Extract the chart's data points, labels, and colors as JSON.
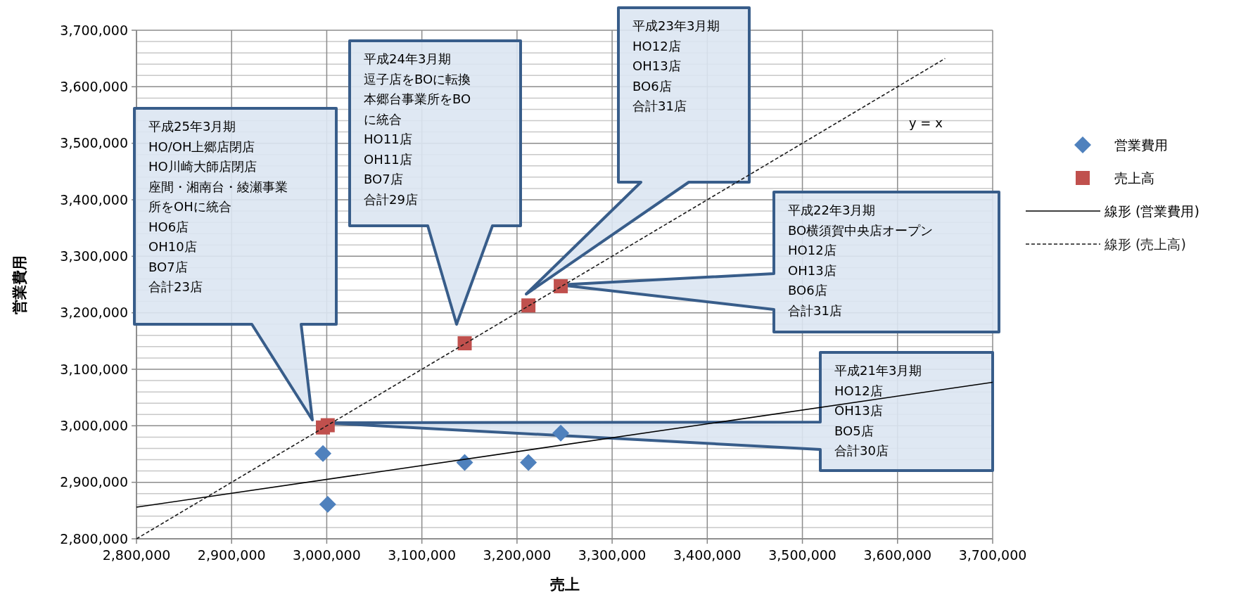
{
  "chart_data": {
    "type": "scatter",
    "xlabel": "売上",
    "ylabel": "営業費用",
    "xlim": [
      2800000,
      3700000
    ],
    "ylim": [
      2800000,
      3700000
    ],
    "xticks": [
      {
        "value": 2800000,
        "label": "2,800,000"
      },
      {
        "value": 2900000,
        "label": "2,900,000"
      },
      {
        "value": 3000000,
        "label": "3,000,000"
      },
      {
        "value": 3100000,
        "label": "3,100,000"
      },
      {
        "value": 3200000,
        "label": "3,200,000"
      },
      {
        "value": 3300000,
        "label": "3,300,000"
      },
      {
        "value": 3400000,
        "label": "3,400,000"
      },
      {
        "value": 3500000,
        "label": "3,500,000"
      },
      {
        "value": 3600000,
        "label": "3,600,000"
      },
      {
        "value": 3700000,
        "label": "3,700,000"
      }
    ],
    "yticks": [
      {
        "value": 2800000,
        "label": "2,800,000"
      },
      {
        "value": 2900000,
        "label": "2,900,000"
      },
      {
        "value": 3000000,
        "label": "3,000,000"
      },
      {
        "value": 3100000,
        "label": "3,100,000"
      },
      {
        "value": 3200000,
        "label": "3,200,000"
      },
      {
        "value": 3300000,
        "label": "3,300,000"
      },
      {
        "value": 3400000,
        "label": "3,400,000"
      },
      {
        "value": 3500000,
        "label": "3,500,000"
      },
      {
        "value": 3600000,
        "label": "3,600,000"
      },
      {
        "value": 3700000,
        "label": "3,700,000"
      }
    ],
    "grid": true,
    "legend": "right",
    "series": [
      {
        "name": "営業費用",
        "marker": "diamond",
        "color": "#4f81bd",
        "x": [
          2996000,
          3001000,
          3145000,
          3212000,
          3246000
        ],
        "values": [
          2951000,
          2861000,
          2935000,
          2935000,
          2987000
        ]
      },
      {
        "name": "売上高",
        "marker": "square",
        "color": "#c0504d",
        "x": [
          2996000,
          3001000,
          3145000,
          3212000,
          3246000
        ],
        "values": [
          2997000,
          3001000,
          3146000,
          3213000,
          3247000
        ]
      },
      {
        "name": "線形 (営業費用)",
        "type": "line",
        "line_style": "solid",
        "marker": "none",
        "color": "#000000",
        "x": [
          2800000,
          3700000
        ],
        "values": [
          2856000,
          3077000
        ]
      },
      {
        "name": "線形 (売上高)",
        "type": "line",
        "line_style": "dashed",
        "marker": "none",
        "color": "#1a1a1a",
        "x": [
          2800000,
          3650000
        ],
        "values": [
          2800000,
          3650000
        ]
      }
    ],
    "annotations": [
      "平成25年3月期",
      "HO/OH上郷店閉店",
      "HO川崎大師店閉店",
      "座間・湘南台・綾瀬事業",
      "所をOHに統合",
      "HO6店",
      "OH10店",
      "BO7店",
      "合計23店",
      "平成24年3月期",
      "逗子店をBOに転換",
      "本郷台事業所をBO",
      "に統合",
      "HO11店",
      "OH11店",
      "BO7店",
      "合計29店",
      "平成23年3月期",
      "HO12店",
      "OH13店",
      "BO6店",
      "合計31店",
      "平成22年3月期",
      "BO横須賀中央店オープン",
      "HO12店",
      "OH13店",
      "BO6店",
      "合計31店",
      "平成21年3月期",
      "HO12店",
      "OH13店",
      "BO5店",
      "合計30店",
      "y = x"
    ]
  }
}
